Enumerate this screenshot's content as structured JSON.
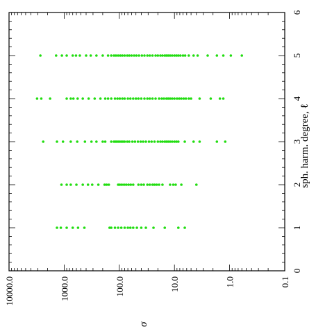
{
  "chart_data": {
    "type": "scatter",
    "orientation": "rotated 90 degrees clockwise (x axis vertical, y axis horizontal)",
    "xlabel": "σ",
    "ylabel": "sph. harm. degree, ℓ",
    "x_scale": "log",
    "x_reversed": true,
    "xlim": [
      0.1,
      10000
    ],
    "ylim": [
      0,
      6
    ],
    "x_tick_labels": [
      "10000.0",
      "1000.0",
      "100.0",
      "10.0",
      "1.0",
      "0.1"
    ],
    "x_ticks": [
      10000,
      1000,
      100,
      10,
      1,
      0.1
    ],
    "y_ticks": [
      0,
      1,
      2,
      3,
      4,
      5,
      6
    ],
    "y_tick_labels": [
      "0",
      "1",
      "2",
      "3",
      "4",
      "5",
      "6"
    ],
    "marker_color": "#22dd11",
    "grid": false,
    "series": [
      {
        "values": [
          {
            "l": 1,
            "sigma": [
              1350,
              1150,
              900,
              700,
              560,
              430,
              150,
              140,
              120,
              105,
              92,
              80,
              70,
              63,
              56,
              48,
              40,
              33,
              24,
              15,
              8.5,
              6.5
            ]
          },
          {
            "l": 2,
            "sigma": [
              1120,
              900,
              760,
              600,
              460,
              370,
              310,
              240,
              185,
              170,
              155,
              105,
              98,
              90,
              82,
              75,
              68,
              62,
              56,
              45,
              40,
              36,
              31,
              28,
              25,
              23,
              21,
              19,
              16.5,
              12,
              10.5,
              9.5,
              7.5,
              4
            ]
          },
          {
            "l": 3,
            "sigma": [
              2400,
              1350,
              1050,
              760,
              580,
              420,
              320,
              260,
              200,
              180,
              140,
              125,
              118,
              112,
              105,
              98,
              92,
              86,
              80,
              72,
              66,
              58,
              52,
              46,
              41,
              37,
              33,
              29,
              26,
              23,
              20,
              18,
              16.5,
              15,
              14,
              13,
              12,
              11,
              10,
              9.2,
              8.5,
              6.5,
              4.5,
              3.5,
              1.7,
              1.2
            ]
          },
          {
            "l": 4,
            "sigma": [
              3100,
              2600,
              1800,
              900,
              760,
              680,
              570,
              460,
              360,
              280,
              220,
              180,
              160,
              140,
              120,
              108,
              98,
              88,
              80,
              70,
              63,
              56,
              50,
              45,
              40,
              35,
              31,
              28,
              25,
              22,
              19,
              17,
              15.5,
              14,
              13,
              12,
              11,
              10,
              9,
              8.2,
              7.5,
              6.8,
              6.2,
              5.5,
              5,
              3.5,
              2.2,
              1.5,
              1.3
            ]
          },
          {
            "l": 5,
            "sigma": [
              2700,
              1400,
              1100,
              900,
              700,
              610,
              520,
              400,
              330,
              260,
              200,
              160,
              140,
              125,
              115,
              105,
              96,
              88,
              80,
              72,
              66,
              60,
              54,
              49,
              44,
              39,
              35,
              31,
              28,
              25,
              22,
              20,
              18,
              16.5,
              15,
              14,
              13,
              12,
              11,
              10,
              9.2,
              8.5,
              7.8,
              7,
              6.4,
              5.5,
              4.5,
              3.8,
              2.5,
              1.7,
              1.3,
              0.95,
              0.6
            ]
          }
        ]
      }
    ]
  }
}
